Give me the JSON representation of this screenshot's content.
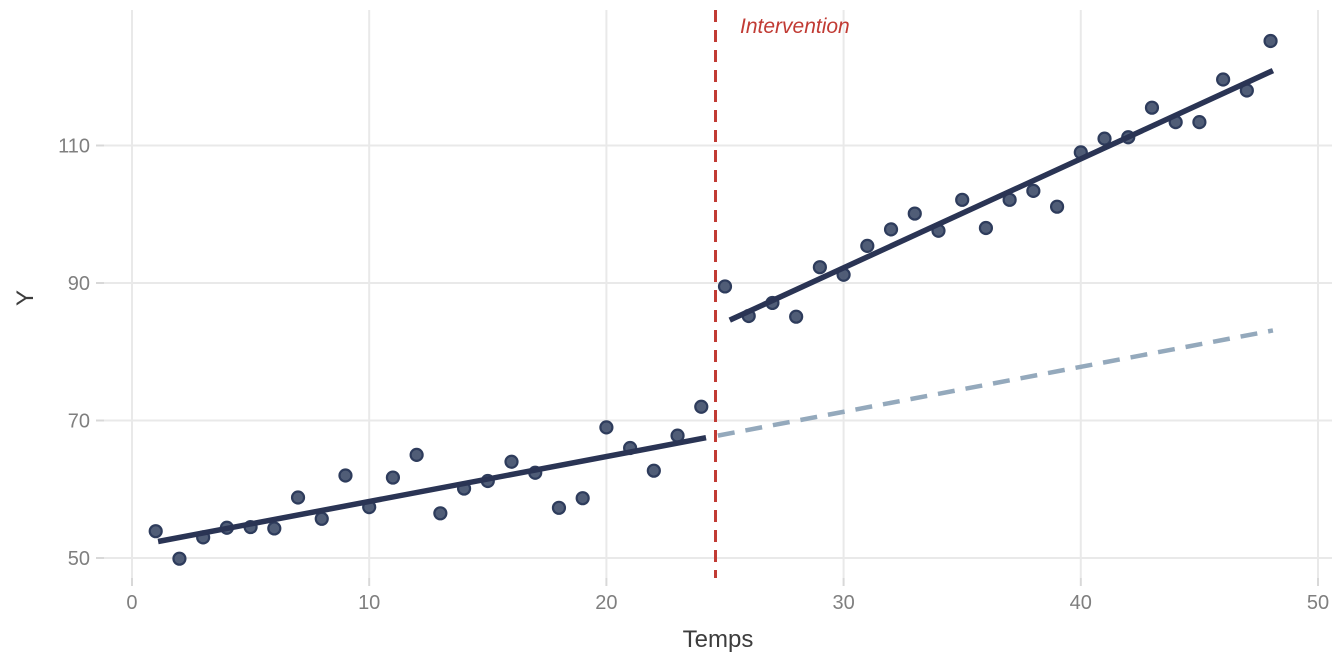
{
  "chart_data": {
    "type": "scatter",
    "title": "",
    "xlabel": "Temps",
    "ylabel": "Y",
    "x_ticks": [
      0,
      10,
      20,
      30,
      40,
      50
    ],
    "y_ticks": [
      50,
      70,
      90,
      110
    ],
    "xlim": [
      -1.18,
      50.59
    ],
    "ylim": [
      47.09,
      129.71
    ],
    "grid": "major-only",
    "legend": "none",
    "points": {
      "x": [
        1,
        2,
        3,
        4,
        5,
        6,
        7,
        8,
        9,
        10,
        11,
        12,
        13,
        14,
        15,
        16,
        17,
        18,
        19,
        20,
        21,
        22,
        23,
        24,
        25,
        26,
        27,
        28,
        29,
        30,
        31,
        32,
        33,
        34,
        35,
        36,
        37,
        38,
        39,
        40,
        41,
        42,
        43,
        44,
        45,
        46,
        47,
        48
      ],
      "y": [
        53.9,
        49.9,
        53.0,
        54.4,
        54.5,
        54.3,
        58.8,
        55.7,
        62.0,
        57.4,
        61.7,
        65.0,
        56.5,
        60.1,
        61.2,
        64.0,
        62.4,
        57.3,
        58.7,
        69.0,
        66.0,
        62.7,
        67.8,
        72.0,
        89.5,
        85.2,
        87.1,
        85.1,
        92.3,
        91.2,
        95.4,
        97.8,
        100.1,
        97.6,
        102.1,
        98.0,
        102.1,
        103.4,
        101.1,
        109.0,
        111.0,
        111.2,
        115.5,
        113.4,
        113.4,
        119.6,
        118.0,
        125.2
      ]
    },
    "trend_segments": [
      {
        "name": "pre-intervention-fit",
        "style": "solid",
        "color_key": "trend",
        "x1": 1.1,
        "y1": 52.4,
        "x2": 24.2,
        "y2": 67.5
      },
      {
        "name": "post-intervention-fit",
        "style": "solid",
        "color_key": "trend",
        "x1": 25.2,
        "y1": 84.6,
        "x2": 48.1,
        "y2": 120.9
      },
      {
        "name": "counterfactual-trend",
        "style": "dashed",
        "color_key": "counterfactual",
        "x1": 24.7,
        "y1": 67.8,
        "x2": 48.1,
        "y2": 83.1
      }
    ],
    "vline": {
      "x": 24.6,
      "label": "Intervention",
      "style": "dashed"
    }
  },
  "colors": {
    "background": "#ffffff",
    "grid": "#e9e9e9",
    "tick_mark": "#d8d8d8",
    "tick_label": "#7f7f7f",
    "axis_title": "#3d3d3d",
    "point_fill": "#475470",
    "point_stroke": "#2e3c5c",
    "trend": "#2a3454",
    "counterfactual": "#94a9bc",
    "intervention": "#c13b34"
  }
}
